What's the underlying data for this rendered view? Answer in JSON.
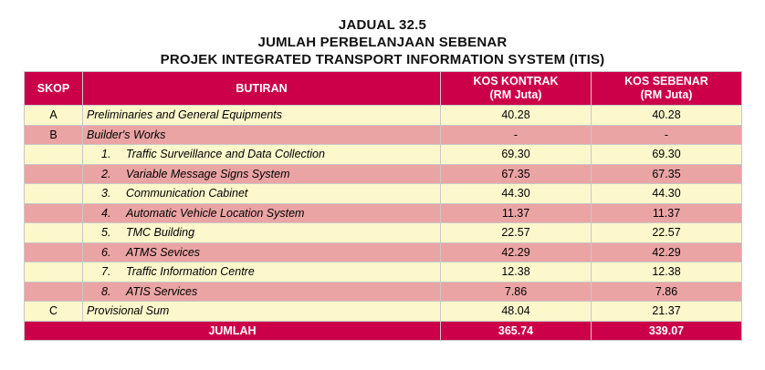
{
  "title": {
    "line1": "JADUAL 32.5",
    "line2": "JUMLAH PERBELANJAAN SEBENAR",
    "line3": "PROJEK INTEGRATED TRANSPORT INFORMATION SYSTEM (ITIS)"
  },
  "headers": {
    "skop": "SKOP",
    "butiran": "BUTIRAN",
    "kontrak_line1": "KOS KONTRAK",
    "kontrak_line2": "(RM Juta)",
    "sebenar_line1": "KOS SEBENAR",
    "sebenar_line2": "(RM Juta)"
  },
  "rows": [
    {
      "skop": "A",
      "index": "",
      "butiran": "Preliminaries and General Equipments",
      "kontrak": "40.28",
      "sebenar": "40.28"
    },
    {
      "skop": "B",
      "index": "",
      "butiran": "Builder's Works",
      "kontrak": "-",
      "sebenar": "-"
    },
    {
      "skop": "",
      "index": "1.",
      "butiran": "Traffic Surveillance and Data Collection",
      "kontrak": "69.30",
      "sebenar": "69.30"
    },
    {
      "skop": "",
      "index": "2.",
      "butiran": "Variable Message Signs System",
      "kontrak": "67.35",
      "sebenar": "67.35"
    },
    {
      "skop": "",
      "index": "3.",
      "butiran": "Communication Cabinet",
      "kontrak": "44.30",
      "sebenar": "44.30"
    },
    {
      "skop": "",
      "index": "4.",
      "butiran": "Automatic Vehicle Location System",
      "kontrak": "11.37",
      "sebenar": "11.37"
    },
    {
      "skop": "",
      "index": "5.",
      "butiran": "TMC Building",
      "kontrak": "22.57",
      "sebenar": "22.57"
    },
    {
      "skop": "",
      "index": "6.",
      "butiran": "ATMS Sevices",
      "kontrak": "42.29",
      "sebenar": "42.29"
    },
    {
      "skop": "",
      "index": "7.",
      "butiran": "Traffic Information Centre",
      "kontrak": "12.38",
      "sebenar": "12.38"
    },
    {
      "skop": "",
      "index": "8.",
      "butiran": "ATIS Services",
      "kontrak": "7.86",
      "sebenar": "7.86"
    },
    {
      "skop": "C",
      "index": "",
      "butiran": "Provisional Sum",
      "kontrak": "48.04",
      "sebenar": "21.37"
    }
  ],
  "total": {
    "label": "JUMLAH",
    "kontrak": "365.74",
    "sebenar": "339.07"
  },
  "colors": {
    "header": "#cc0049",
    "row_yellow": "#fdf7cc",
    "row_pink": "#eba4a4"
  }
}
